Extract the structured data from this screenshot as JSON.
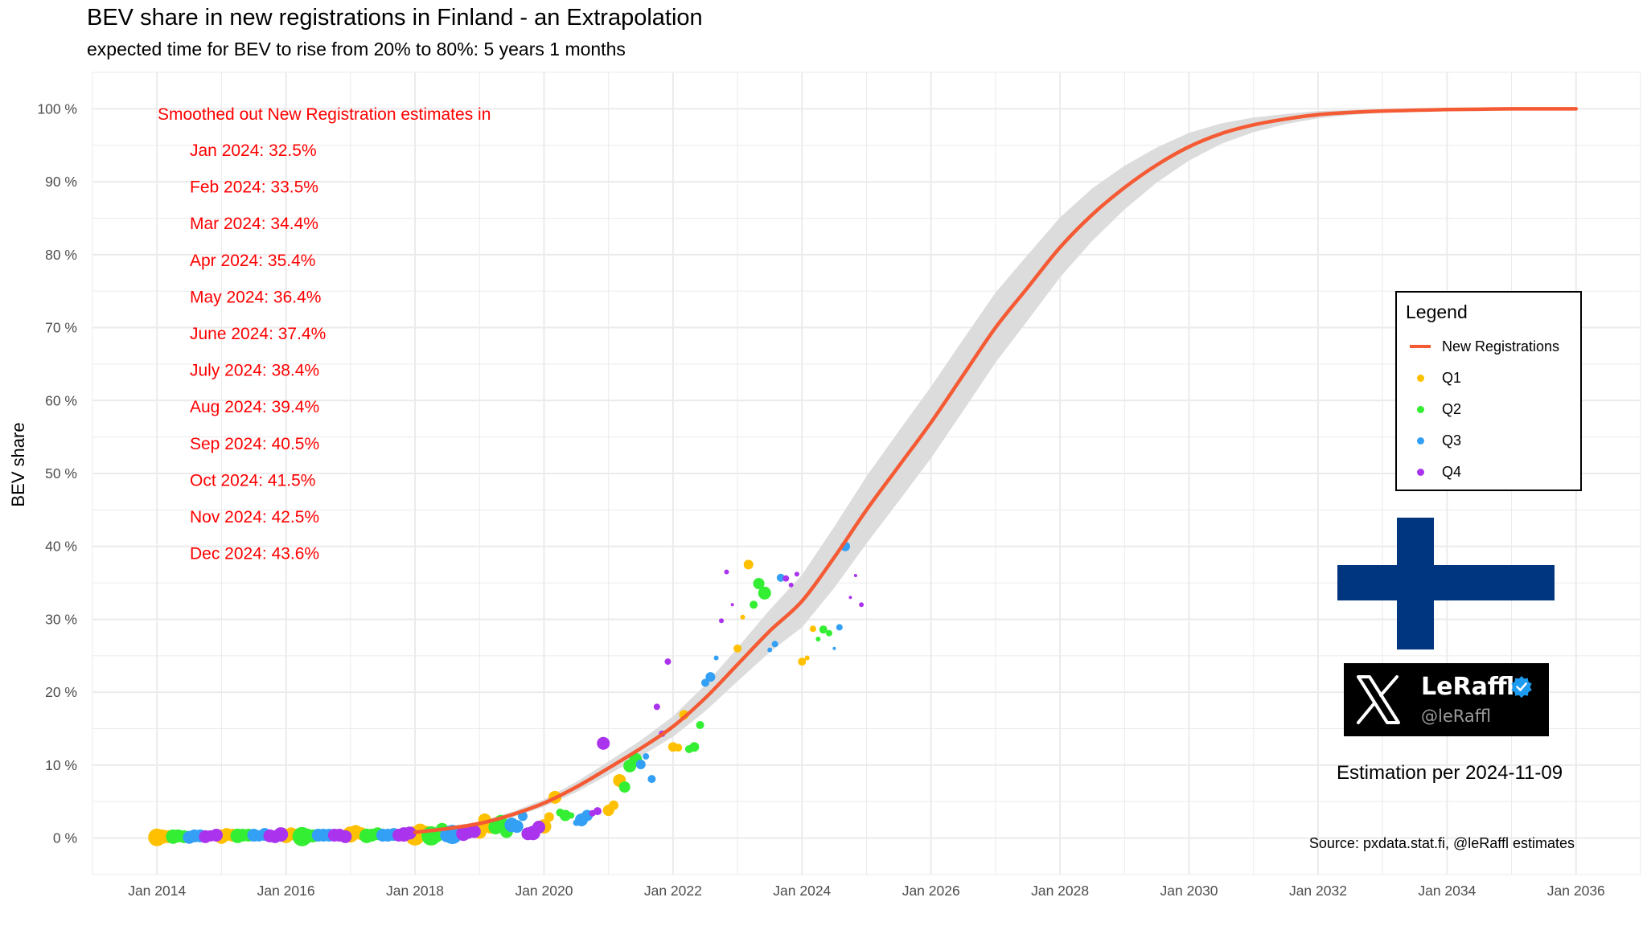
{
  "chart_data": {
    "type": "scatter",
    "title": "BEV share in new registrations in Finland - an Extrapolation",
    "subtitle": "expected time for BEV to rise from 20% to 80%: 5 years 1 months",
    "xlabel": "",
    "ylabel": "BEV share",
    "x_axis": {
      "type": "date",
      "range": [
        "2013-01-01",
        "2037-01-01"
      ],
      "ticks": [
        {
          "value": 2014,
          "label": "Jan 2014"
        },
        {
          "value": 2016,
          "label": "Jan 2016"
        },
        {
          "value": 2018,
          "label": "Jan 2018"
        },
        {
          "value": 2020,
          "label": "Jan 2020"
        },
        {
          "value": 2022,
          "label": "Jan 2022"
        },
        {
          "value": 2024,
          "label": "Jan 2024"
        },
        {
          "value": 2026,
          "label": "Jan 2026"
        },
        {
          "value": 2028,
          "label": "Jan 2028"
        },
        {
          "value": 2030,
          "label": "Jan 2030"
        },
        {
          "value": 2032,
          "label": "Jan 2032"
        },
        {
          "value": 2034,
          "label": "Jan 2034"
        },
        {
          "value": 2036,
          "label": "Jan 2036"
        }
      ]
    },
    "y_axis": {
      "range": [
        -5,
        105
      ],
      "ticks": [
        {
          "value": 0,
          "label": "0 %"
        },
        {
          "value": 10,
          "label": "10 %"
        },
        {
          "value": 20,
          "label": "20 %"
        },
        {
          "value": 30,
          "label": "30 %"
        },
        {
          "value": 40,
          "label": "40 %"
        },
        {
          "value": 50,
          "label": "50 %"
        },
        {
          "value": 60,
          "label": "60 %"
        },
        {
          "value": 70,
          "label": "70 %"
        },
        {
          "value": 80,
          "label": "80 %"
        },
        {
          "value": 90,
          "label": "90 %"
        },
        {
          "value": 100,
          "label": "100 %"
        }
      ]
    },
    "grid": true,
    "legend": {
      "title": "Legend",
      "position": "right",
      "entries": [
        {
          "label": "New Registrations",
          "kind": "line",
          "color": "#f45a33"
        },
        {
          "label": "Q1",
          "kind": "point",
          "color": "#ffc000"
        },
        {
          "label": "Q2",
          "kind": "point",
          "color": "#33ee33"
        },
        {
          "label": "Q3",
          "kind": "point",
          "color": "#33a0f5"
        },
        {
          "label": "Q4",
          "kind": "point",
          "color": "#aa33ee"
        }
      ]
    },
    "fit": {
      "name": "New Registrations",
      "color": "#f45a33",
      "band_color": "#dcdcdc",
      "x": [
        2018.0,
        2018.5,
        2019.0,
        2019.5,
        2020.0,
        2020.5,
        2021.0,
        2021.5,
        2022.0,
        2022.5,
        2023.0,
        2023.5,
        2024.0,
        2024.5,
        2025.0,
        2025.5,
        2026.0,
        2026.5,
        2027.0,
        2027.5,
        2028.0,
        2028.5,
        2029.0,
        2029.5,
        2030.0,
        2030.5,
        2031.0,
        2031.5,
        2032.0,
        2032.5,
        2033.0,
        2033.5,
        2034.0,
        2034.5,
        2035.0,
        2035.5,
        2036.0
      ],
      "y": [
        0.8,
        1.3,
        2.0,
        3.2,
        4.8,
        7.0,
        9.6,
        12.3,
        15.3,
        19.2,
        23.8,
        28.4,
        32.5,
        38.5,
        45.0,
        51.0,
        57.0,
        63.5,
        70.0,
        75.5,
        81.0,
        85.5,
        89.2,
        92.3,
        94.8,
        96.6,
        97.8,
        98.6,
        99.2,
        99.5,
        99.7,
        99.8,
        99.9,
        99.95,
        100.0,
        100.0,
        100.0
      ],
      "band_halfwidth": [
        0.2,
        0.2,
        0.3,
        0.4,
        0.5,
        0.7,
        0.9,
        1.1,
        1.4,
        1.8,
        2.3,
        2.9,
        3.6,
        4.2,
        4.6,
        4.8,
        4.9,
        4.9,
        4.8,
        4.5,
        4.1,
        3.6,
        3.0,
        2.4,
        1.9,
        1.4,
        1.0,
        0.7,
        0.5,
        0.35,
        0.25,
        0.15,
        0.1,
        0.05,
        0.03,
        0.02,
        0.01
      ]
    },
    "series": [
      {
        "name": "Q1",
        "color": "#ffc000",
        "x": [
          2014.0,
          2014.08,
          2014.17,
          2015.0,
          2015.08,
          2015.17,
          2016.0,
          2016.08,
          2016.17,
          2017.0,
          2017.08,
          2017.17,
          2018.0,
          2018.08,
          2018.17,
          2019.0,
          2019.08,
          2019.17,
          2020.0,
          2020.08,
          2020.17,
          2021.0,
          2021.08,
          2021.17,
          2022.0,
          2022.08,
          2022.17,
          2023.0,
          2023.08,
          2023.17,
          2024.0,
          2024.08,
          2024.17
        ],
        "y": [
          0.1,
          0.2,
          0.2,
          0.2,
          0.5,
          0.4,
          0.3,
          0.6,
          0.4,
          0.5,
          0.8,
          0.6,
          0.3,
          1.0,
          0.8,
          0.9,
          2.5,
          1.5,
          1.6,
          2.9,
          5.6,
          3.8,
          4.5,
          7.9,
          12.5,
          12.4,
          16.9,
          26.0,
          30.3,
          37.5,
          24.2,
          24.7,
          28.7
        ],
        "size": [
          11,
          9,
          8,
          9,
          8,
          8,
          9,
          8,
          8,
          10,
          9,
          8,
          12,
          9,
          8,
          9,
          8,
          8,
          9,
          6,
          8,
          7,
          6,
          8,
          6,
          5,
          6,
          5,
          3,
          6,
          5,
          3,
          4
        ]
      },
      {
        "name": "Q2",
        "color": "#33ee33",
        "x": [
          2014.25,
          2014.33,
          2014.42,
          2015.25,
          2015.33,
          2015.42,
          2016.25,
          2016.33,
          2016.42,
          2017.25,
          2017.33,
          2017.42,
          2018.25,
          2018.33,
          2018.42,
          2019.25,
          2019.33,
          2019.42,
          2020.25,
          2020.33,
          2020.42,
          2021.25,
          2021.33,
          2021.42,
          2022.25,
          2022.33,
          2022.42,
          2023.25,
          2023.33,
          2023.42,
          2024.25,
          2024.33,
          2024.42
        ],
        "y": [
          0.2,
          0.3,
          0.2,
          0.3,
          0.4,
          0.4,
          0.2,
          0.3,
          0.3,
          0.3,
          0.4,
          0.6,
          0.3,
          0.4,
          1.2,
          1.5,
          2.3,
          0.9,
          3.5,
          3.1,
          3.1,
          7.0,
          9.9,
          10.8,
          12.2,
          12.5,
          15.5,
          32.0,
          34.9,
          33.6,
          27.3,
          28.6,
          28.1
        ],
        "size": [
          9,
          8,
          8,
          9,
          8,
          8,
          12,
          9,
          8,
          9,
          8,
          8,
          12,
          9,
          8,
          9,
          8,
          8,
          5,
          7,
          4,
          7,
          8,
          8,
          5,
          6,
          5,
          5,
          7,
          8,
          3,
          5,
          4
        ]
      },
      {
        "name": "Q3",
        "color": "#33a0f5",
        "x": [
          2014.5,
          2014.58,
          2014.67,
          2015.5,
          2015.58,
          2015.67,
          2016.5,
          2016.58,
          2016.67,
          2017.5,
          2017.58,
          2017.67,
          2018.5,
          2018.58,
          2018.67,
          2019.5,
          2019.58,
          2019.67,
          2020.5,
          2020.58,
          2020.67,
          2021.5,
          2021.58,
          2021.67,
          2022.5,
          2022.58,
          2022.67,
          2023.5,
          2023.58,
          2023.67,
          2024.5,
          2024.58,
          2024.67
        ],
        "y": [
          0.1,
          0.3,
          0.3,
          0.4,
          0.3,
          0.5,
          0.4,
          0.4,
          0.4,
          0.4,
          0.4,
          0.5,
          0.4,
          0.5,
          0.9,
          1.8,
          1.6,
          3.0,
          2.1,
          2.5,
          3.1,
          10.1,
          11.2,
          8.1,
          21.3,
          22.1,
          24.7,
          25.8,
          26.6,
          35.7,
          26.0,
          28.9,
          40.0
        ],
        "size": [
          8,
          8,
          8,
          8,
          7,
          8,
          8,
          8,
          8,
          8,
          8,
          8,
          9,
          12,
          8,
          9,
          8,
          6,
          4,
          8,
          7,
          6,
          4,
          5,
          5,
          6,
          3,
          3,
          4,
          5,
          2,
          4,
          6
        ]
      },
      {
        "name": "Q4",
        "color": "#aa33ee",
        "x": [
          2014.75,
          2014.83,
          2014.92,
          2015.75,
          2015.83,
          2015.92,
          2016.75,
          2016.83,
          2016.92,
          2017.75,
          2017.83,
          2017.92,
          2018.75,
          2018.83,
          2018.92,
          2019.75,
          2019.83,
          2019.92,
          2020.75,
          2020.83,
          2020.92,
          2021.75,
          2021.83,
          2021.92,
          2022.75,
          2022.83,
          2022.92,
          2023.75,
          2023.83,
          2023.92,
          2024.75,
          2024.83,
          2024.92
        ],
        "y": [
          0.2,
          0.3,
          0.4,
          0.3,
          0.2,
          0.5,
          0.4,
          0.4,
          0.2,
          0.4,
          0.5,
          0.7,
          0.6,
          0.8,
          0.9,
          0.6,
          0.7,
          1.5,
          3.4,
          3.7,
          13.0,
          18.0,
          14.3,
          24.2,
          29.8,
          36.5,
          32.0,
          35.6,
          34.7,
          36.2,
          33.0,
          36.0,
          32.0
        ],
        "size": [
          8,
          7,
          8,
          8,
          8,
          9,
          8,
          8,
          8,
          8,
          9,
          8,
          9,
          8,
          8,
          8,
          9,
          8,
          4,
          5,
          8,
          4,
          4,
          4,
          3,
          3,
          2,
          4,
          3,
          3,
          2,
          2,
          3
        ]
      }
    ],
    "annotations": {
      "header": "Smoothed out New Registration estimates in",
      "lines": [
        "Jan 2024: 32.5%",
        "Feb 2024: 33.5%",
        "Mar 2024: 34.4%",
        "Apr 2024: 35.4%",
        "May 2024: 36.4%",
        "June 2024: 37.4%",
        "July 2024: 38.4%",
        "Aug 2024: 39.4%",
        "Sep 2024: 40.5%",
        "Oct 2024: 41.5%",
        "Nov 2024: 42.5%",
        "Dec 2024: 43.6%"
      ]
    },
    "estimation_note": "Estimation per 2024-11-09",
    "source": "Source: pxdata.stat.fi, @leRaffl estimates"
  },
  "badge": {
    "name": "LeRaffl",
    "handle": "@leRaffl"
  },
  "flag": {
    "name": "finland-flag",
    "cross_color": "#003580",
    "field_color": "#ffffff"
  }
}
